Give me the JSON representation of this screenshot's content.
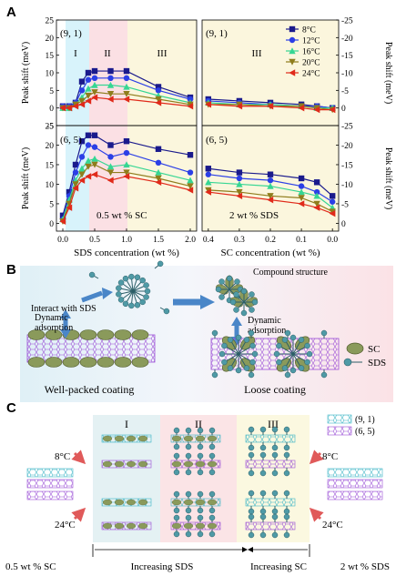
{
  "panel_labels": {
    "a": "A",
    "b": "B",
    "c": "C"
  },
  "colors": {
    "s8": "#1a1a8c",
    "s12": "#2b3fe6",
    "s16": "#36d693",
    "s20": "#8f7d1c",
    "s24": "#e02a1a",
    "region1": "#d8f3fb",
    "region2": "#fbe0e4",
    "region3": "#fbf6dd",
    "sc": "#8a9a5b",
    "sds": "#4f9aa6",
    "nanotube91": "#3fb6c6",
    "nanotube65": "#9b4fd6"
  },
  "chart_data": [
    {
      "type": "line",
      "panel": "top-left",
      "tube_label": "(9, 1)",
      "regions": [
        "I",
        "II",
        "III"
      ],
      "ylabel": "Peak shift (meV)",
      "y_ticks": [
        "-5",
        "0",
        "5",
        "10",
        "15",
        "20",
        "25"
      ],
      "ylim": [
        -5,
        25
      ],
      "xlim": [
        -0.1,
        2.1
      ],
      "x": [
        0.0,
        0.1,
        0.2,
        0.3,
        0.4,
        0.5,
        0.75,
        1.0,
        1.5,
        2.0
      ],
      "series": [
        {
          "name": "8°C",
          "values": [
            0.5,
            0.5,
            1.5,
            7.5,
            10.0,
            10.5,
            10.5,
            10.5,
            6.0,
            3.0
          ]
        },
        {
          "name": "12°C",
          "values": [
            0.5,
            0.5,
            1.5,
            5.0,
            8.0,
            8.5,
            8.5,
            8.5,
            5.0,
            2.5
          ]
        },
        {
          "name": "16°C",
          "values": [
            0.0,
            0.0,
            1.0,
            3.0,
            5.5,
            6.5,
            6.5,
            6.0,
            3.5,
            1.5
          ]
        },
        {
          "name": "20°C",
          "values": [
            0.0,
            0.0,
            1.0,
            2.0,
            3.5,
            4.5,
            4.0,
            4.0,
            2.5,
            1.0
          ]
        },
        {
          "name": "24°C",
          "values": [
            0.0,
            0.0,
            0.5,
            1.0,
            2.0,
            3.0,
            2.5,
            2.5,
            1.5,
            0.5
          ]
        }
      ]
    },
    {
      "type": "line",
      "panel": "top-right",
      "tube_label": "(9, 1)",
      "regions": [
        "III"
      ],
      "ylabel": "Peak shift (meV)",
      "y_ticks": [
        "-25",
        "-20",
        "-15",
        "-10",
        "-5",
        "0"
      ],
      "ylim": [
        -25,
        5
      ],
      "xlim": [
        0.42,
        -0.02
      ],
      "x": [
        0.4,
        0.3,
        0.2,
        0.1,
        0.05,
        0.0
      ],
      "series": [
        {
          "name": "8°C",
          "values": [
            -2.5,
            -2.0,
            -1.5,
            -1.0,
            -0.5,
            0.0
          ]
        },
        {
          "name": "12°C",
          "values": [
            -2.0,
            -1.5,
            -1.0,
            -0.5,
            -0.5,
            0.0
          ]
        },
        {
          "name": "16°C",
          "values": [
            -1.5,
            -1.0,
            -1.0,
            -0.5,
            0.0,
            0.0
          ]
        },
        {
          "name": "20°C",
          "values": [
            -1.0,
            -1.0,
            -0.5,
            -0.5,
            0.0,
            0.5
          ]
        },
        {
          "name": "24°C",
          "values": [
            -1.0,
            -0.5,
            -0.5,
            0.0,
            0.5,
            0.5
          ]
        }
      ],
      "legend": {
        "placement": "top-right",
        "entries": [
          "8°C",
          "12°C",
          "16°C",
          "20°C",
          "24°C"
        ]
      }
    },
    {
      "type": "line",
      "panel": "bottom-left",
      "tube_label": "(6, 5)",
      "annotation": "0.5 wt % SC",
      "ylabel": "Peak shift (meV)",
      "xlabel": "SDS concentration (wt %)",
      "x_ticks": [
        "0.0",
        "0.5",
        "1.0",
        "1.5",
        "2.0"
      ],
      "y_ticks": [
        "0",
        "5",
        "10",
        "15",
        "20",
        "25"
      ],
      "ylim": [
        -2,
        25
      ],
      "xlim": [
        -0.1,
        2.1
      ],
      "x": [
        0.0,
        0.1,
        0.2,
        0.3,
        0.4,
        0.5,
        0.75,
        1.0,
        1.5,
        2.0
      ],
      "series": [
        {
          "name": "8°C",
          "values": [
            2.0,
            8.0,
            15.0,
            21.0,
            22.5,
            22.5,
            20.0,
            21.0,
            19.0,
            17.5
          ]
        },
        {
          "name": "12°C",
          "values": [
            1.0,
            7.0,
            13.0,
            17.0,
            20.0,
            19.5,
            17.0,
            18.0,
            15.5,
            13.0
          ]
        },
        {
          "name": "16°C",
          "values": [
            1.0,
            6.0,
            11.0,
            14.0,
            16.0,
            16.5,
            14.5,
            15.0,
            13.0,
            11.0
          ]
        },
        {
          "name": "20°C",
          "values": [
            0.5,
            5.0,
            10.0,
            12.5,
            14.5,
            15.0,
            13.0,
            13.0,
            11.5,
            9.5
          ]
        },
        {
          "name": "24°C",
          "values": [
            0.5,
            4.0,
            9.0,
            11.0,
            12.0,
            12.5,
            11.0,
            12.0,
            10.5,
            8.5
          ]
        }
      ]
    },
    {
      "type": "line",
      "panel": "bottom-right",
      "tube_label": "(6, 5)",
      "annotation": "2 wt % SDS",
      "ylabel": "Peak shift (meV)",
      "xlabel": "SC  concentration (wt %)",
      "x_ticks": [
        "0.4",
        "0.3",
        "0.2",
        "0.1",
        "0.0"
      ],
      "y_ticks": [
        "-25",
        "-20",
        "-15",
        "-10",
        "-5",
        "0"
      ],
      "ylim": [
        -25,
        2
      ],
      "xlim": [
        0.42,
        -0.02
      ],
      "x": [
        0.4,
        0.3,
        0.2,
        0.1,
        0.05,
        0.0
      ],
      "series": [
        {
          "name": "8°C",
          "values": [
            -14.0,
            -13.0,
            -12.5,
            -11.5,
            -10.5,
            -7.0
          ]
        },
        {
          "name": "12°C",
          "values": [
            -12.5,
            -11.5,
            -11.0,
            -9.5,
            -8.0,
            -5.5
          ]
        },
        {
          "name": "16°C",
          "values": [
            -10.5,
            -10.0,
            -9.5,
            -8.0,
            -7.0,
            -4.0
          ]
        },
        {
          "name": "20°C",
          "values": [
            -8.5,
            -8.0,
            -7.0,
            -6.5,
            -5.0,
            -3.0
          ]
        },
        {
          "name": "24°C",
          "values": [
            -8.0,
            -7.0,
            -6.0,
            -5.0,
            -4.0,
            -2.5
          ]
        }
      ]
    }
  ],
  "panel_b": {
    "interact_label": "Interact with SDS",
    "dynamic_label_left": "Dynamic\nadsorption",
    "dynamic_label_right": "Dynamic\nadsorption",
    "compound_label": "Compound structure",
    "well_packed_label": "Well-packed coating",
    "loose_label": "Loose coating",
    "legend_sc": "SC",
    "legend_sds": "SDS"
  },
  "panel_c": {
    "region_labels": [
      "I",
      "II",
      "III"
    ],
    "temp_top_left": "8°C",
    "temp_bottom_left": "24°C",
    "temp_top_right": "8°C",
    "temp_bottom_right": "24°C",
    "legend_91": "(9, 1)",
    "legend_65": "(6, 5)",
    "bottom_sc": "0.5 wt % SC",
    "bottom_inc_sds": "Increasing SDS",
    "bottom_inc_sc": "Increasing SC",
    "bottom_sds": "2 wt % SDS"
  }
}
